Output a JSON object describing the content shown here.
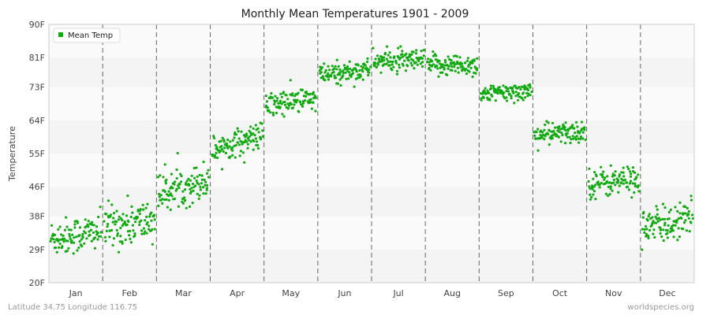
{
  "chart_data": {
    "type": "scatter",
    "title": "Monthly Mean Temperatures 1901 - 2009",
    "ylabel": "Temperature",
    "xlabel": "",
    "y_ticks": [
      "20F",
      "29F",
      "38F",
      "46F",
      "55F",
      "64F",
      "73F",
      "81F",
      "90F"
    ],
    "ylim": [
      20,
      90
    ],
    "categories": [
      "Jan",
      "Feb",
      "Mar",
      "Apr",
      "May",
      "Jun",
      "Jul",
      "Aug",
      "Sep",
      "Oct",
      "Nov",
      "Dec"
    ],
    "grid": true,
    "legend_position": "top-left",
    "series": [
      {
        "name": "Mean Temp",
        "color": "#11aa11",
        "points_per_month": 109,
        "month_profiles": [
          {
            "month": "Jan",
            "start": 32,
            "end": 34,
            "spread": 2.5
          },
          {
            "month": "Feb",
            "start": 35,
            "end": 37,
            "spread": 3.0
          },
          {
            "month": "Mar",
            "start": 44,
            "end": 48,
            "spread": 2.5
          },
          {
            "month": "Apr",
            "start": 56,
            "end": 60,
            "spread": 1.8
          },
          {
            "month": "May",
            "start": 68,
            "end": 70,
            "spread": 1.8
          },
          {
            "month": "Jun",
            "start": 76,
            "end": 78,
            "spread": 1.5
          },
          {
            "month": "Jul",
            "start": 80,
            "end": 80,
            "spread": 1.5
          },
          {
            "month": "Aug",
            "start": 79,
            "end": 79,
            "spread": 1.5
          },
          {
            "month": "Sep",
            "start": 71,
            "end": 72,
            "spread": 1.2
          },
          {
            "month": "Oct",
            "start": 60,
            "end": 61,
            "spread": 1.5
          },
          {
            "month": "Nov",
            "start": 47,
            "end": 48,
            "spread": 2.0
          },
          {
            "month": "Dec",
            "start": 35,
            "end": 37,
            "spread": 2.5
          }
        ]
      }
    ]
  },
  "footer": {
    "left": "Latitude 34.75 Longitude 116.75",
    "right": "worldspecies.org"
  }
}
